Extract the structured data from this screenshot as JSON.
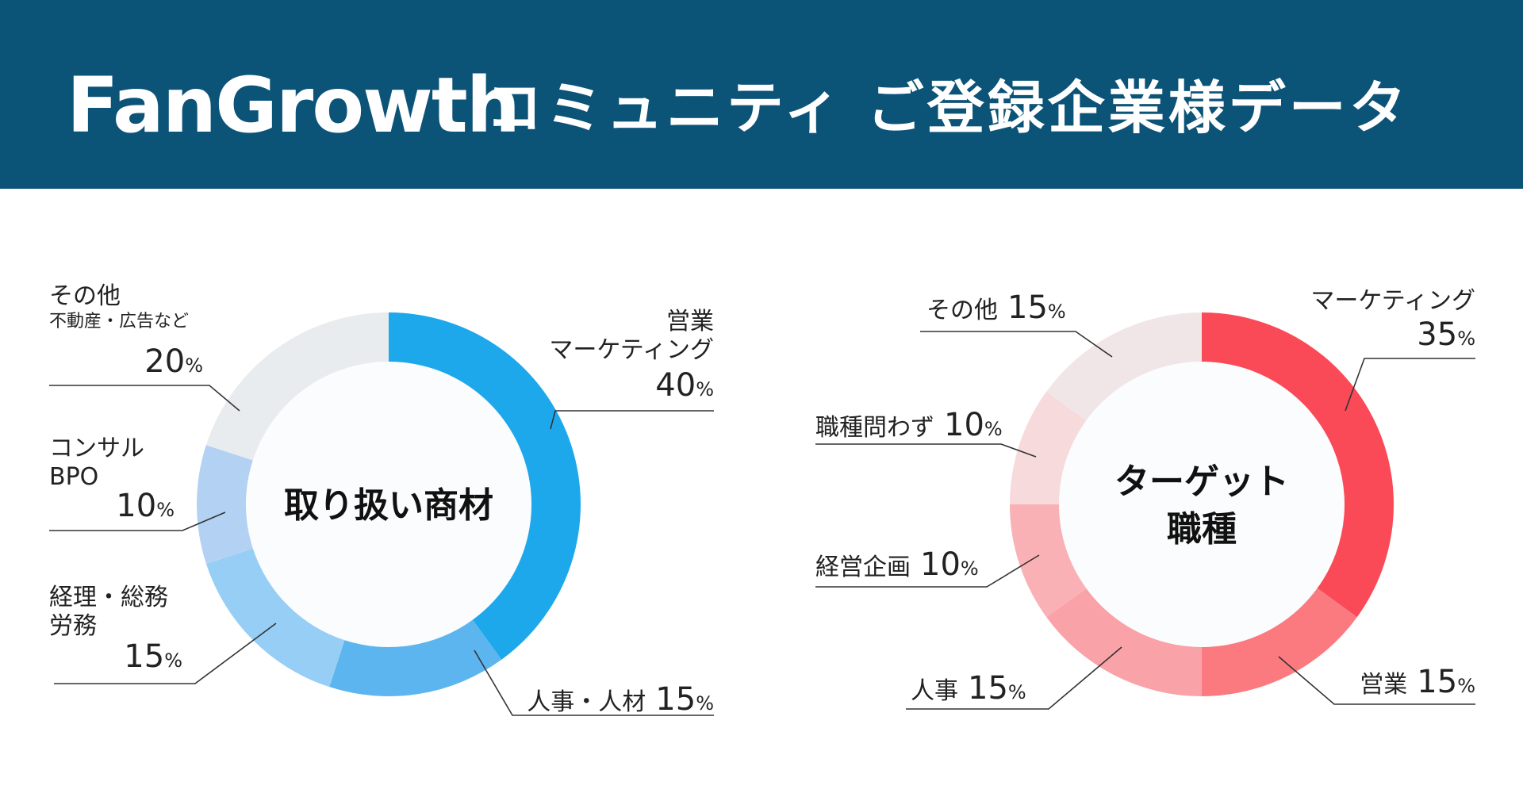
{
  "header": {
    "logo_text": "FanGrowth",
    "headline": "コミュニティ ご登録企業様データ",
    "background": "#0c5378"
  },
  "chart_data": [
    {
      "type": "pie",
      "title": "取り扱い商材",
      "slices": [
        {
          "label": "営業\nマーケティング",
          "value": 40,
          "color": "#1ea8ec"
        },
        {
          "label": "人事・人材",
          "value": 15,
          "color": "#5cb5ee"
        },
        {
          "label": "経理・総務\n労務",
          "value": 15,
          "color": "#96cef6"
        },
        {
          "label": "コンサル\nBPO",
          "value": 10,
          "color": "#b3d1f2"
        },
        {
          "label": "その他\n不動産・広告など",
          "value": 20,
          "color": "#e8ecef"
        }
      ],
      "unit": "%"
    },
    {
      "type": "pie",
      "title": "ターゲット\n職種",
      "slices": [
        {
          "label": "マーケティング",
          "value": 35,
          "color": "#fa4a58"
        },
        {
          "label": "営業",
          "value": 15,
          "color": "#fa7a80"
        },
        {
          "label": "人事",
          "value": 15,
          "color": "#f9a2a7"
        },
        {
          "label": "経営企画",
          "value": 10,
          "color": "#fab1b5"
        },
        {
          "label": "職種問わず",
          "value": 10,
          "color": "#f7dadc"
        },
        {
          "label": "その他",
          "value": 15,
          "color": "#f1e6e7"
        }
      ],
      "unit": "%"
    }
  ]
}
